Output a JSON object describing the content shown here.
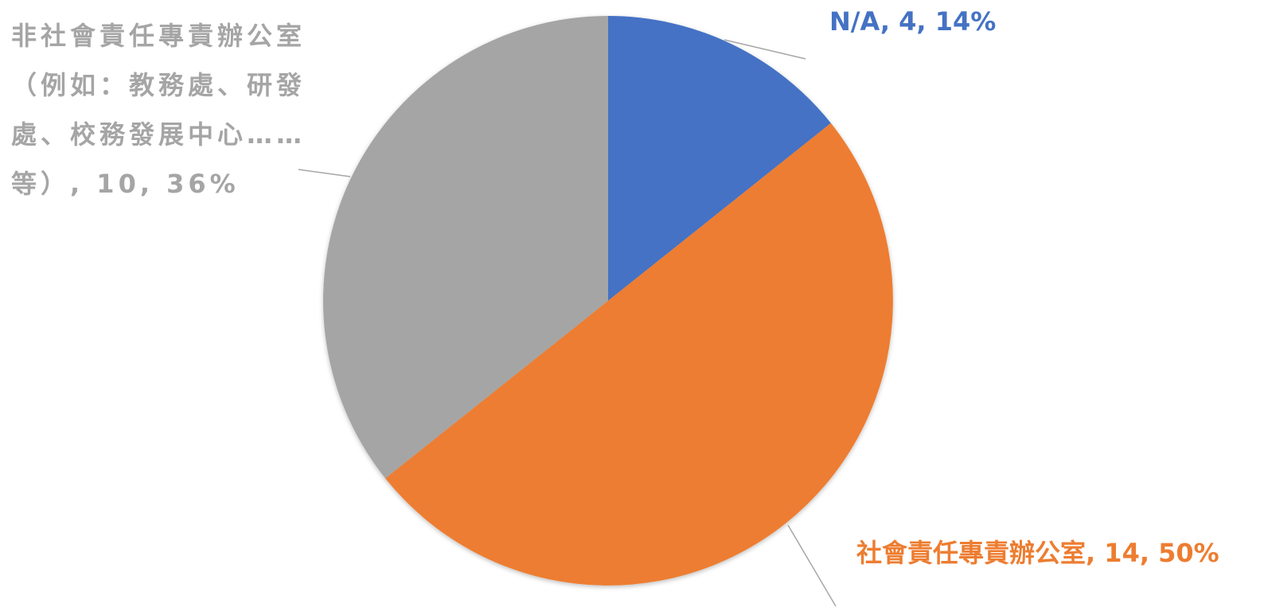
{
  "chart_data": {
    "type": "pie",
    "values": [
      4,
      14,
      10
    ],
    "value_labels": [
      "N/A, 4, 14%",
      "社會責任專責辦公室, 14, 50%",
      "非社會責任專責辦公室（例如：教務處、研發處、校務發展中心……等）, 10, 36%"
    ],
    "colors": [
      "#4472c4",
      "#ed7d31",
      "#a5a5a5"
    ]
  }
}
